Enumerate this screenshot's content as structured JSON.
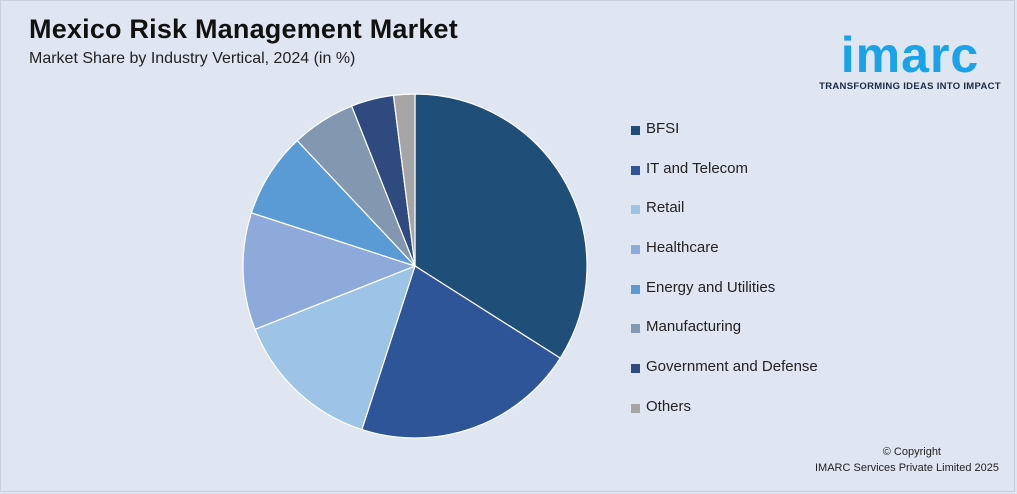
{
  "header": {
    "title": "Mexico Risk Management Market",
    "subtitle": "Market Share by Industry Vertical, 2024 (in %)"
  },
  "logo": {
    "wordmark": "imarc",
    "tagline": "TRANSFORMING IDEAS INTO IMPACT",
    "color": "#1aa3e8"
  },
  "chart_data": {
    "type": "pie",
    "title": "Mexico Risk Management Market",
    "subtitle": "Market Share by Industry Vertical, 2024 (in %)",
    "legend_position": "right",
    "categories": [
      "BFSI",
      "IT and Telecom",
      "Retail",
      "Healthcare",
      "Energy and Utilities",
      "Manufacturing",
      "Government and Defense",
      "Others"
    ],
    "values": [
      34,
      21,
      14,
      11,
      8,
      6,
      4,
      2
    ],
    "colors": [
      "#1f4e79",
      "#2e5597",
      "#9dc3e6",
      "#8eaadb",
      "#5b9bd5",
      "#8497b0",
      "#2f4a7f",
      "#a5a5a5"
    ]
  },
  "footer": {
    "copyright": "© Copyright",
    "company": "IMARC Services Private Limited 2025"
  }
}
